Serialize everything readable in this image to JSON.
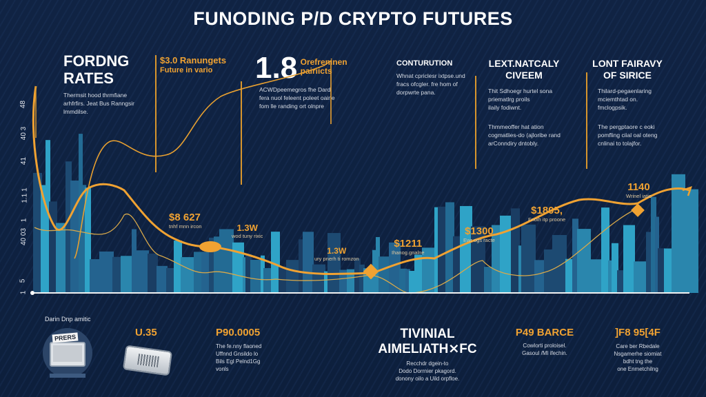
{
  "title": "FUNODING P/D CRYPTO FUTURES",
  "colors": {
    "background": "#0f2241",
    "accent": "#f0a232",
    "bars": "#2a9ec0"
  },
  "header_blocks": [
    {
      "heading": [
        "FORDNG",
        "RATES"
      ],
      "body": [
        "Thermsit hood thrmfiane",
        "arhfrfirs. Jeat Bus Ranngsir",
        "lmmdilse."
      ]
    },
    {
      "heading": [
        "$3.0 Ranungets",
        "Future in vario"
      ]
    },
    {
      "big_number": "1.8",
      "caption": [
        "Orefreninen",
        "pairiicts"
      ],
      "body": [
        "ACWDpeemegros fhe Dard",
        "fera nuol feleent poleet oaine",
        "fom lle randing ort olnpre"
      ]
    },
    {
      "heading": [
        "CONTURUTION"
      ],
      "body": [
        "Whnat cpriclesr ixtpse.und",
        "fracs ofcgler. fre hom of",
        "dorpwrte pana."
      ]
    },
    {
      "heading": [
        "LEXT.NATCALY",
        "CIVEEM"
      ],
      "body": [
        "Thit Sdhoegr hurtel sona",
        "priematlrg proils",
        "ilaily fodiwnt.",
        "",
        "Thmmeoffer hat ation",
        "cogmatlies-do (ajloribe rand",
        "arConndiry dntobly."
      ]
    },
    {
      "heading": [
        "LONT FAIRAVY",
        "OF SIRICE"
      ],
      "body": [
        "Thilard-pegaenlaring",
        "mciemthtad on.",
        "fmclogpsik.",
        "",
        "The pergptaore c eoki",
        "pomfling ciial oal oteng",
        "cnlinai to tolajfor."
      ]
    }
  ],
  "axis_labels": [
    "48",
    "40 3",
    "41",
    "1.1 1",
    "1",
    "40 03",
    "5",
    "1"
  ],
  "chart_callouts": [
    {
      "value": "$8 627",
      "caption": "tnhf mnn ircon"
    },
    {
      "value": "1.3W",
      "caption": "wod tuny rixic"
    },
    {
      "value": "1.3W",
      "caption": "ury pnerh ti romzon"
    },
    {
      "value": "$1211",
      "caption": "Ihanog.gnalne"
    },
    {
      "value": "$1300",
      "caption": "Ewr ogs racte"
    },
    {
      "value": "$1805,",
      "caption": "Fnoih itp proone"
    },
    {
      "value": "1140",
      "caption": "Wrinel iatio"
    }
  ],
  "footer_blocks": [
    {
      "label": "Darin Dnp amitic",
      "icon": "monitor-badge-icon",
      "badge": "PRERS"
    },
    {
      "value": "U.35",
      "icon": "hardware-wallet-icon"
    },
    {
      "value": "P90.0005",
      "body": [
        "The fe.nny flaoned",
        "Uffnnd Gnsildo lo",
        "Bils Egl Pelnd1Gg",
        "vonls"
      ]
    },
    {
      "heading": [
        "TIVINIAL",
        "AIMELIATH⨯FC"
      ],
      "body": [
        "Recchdr dgein-to",
        "Dodo Dorrnier pkagord.",
        "donony oilo a Uild orpfloe."
      ]
    },
    {
      "value": "P49  BARCE",
      "body": [
        "Cowlorti proloisel.",
        "Gasoul /Ml ifechin."
      ]
    },
    {
      "value": "]F8 95[4F",
      "body": [
        "Care ber Rbedale",
        "Nsgamerhe siomiat",
        "bdht tng the",
        "one Enmetchilng"
      ]
    }
  ]
}
